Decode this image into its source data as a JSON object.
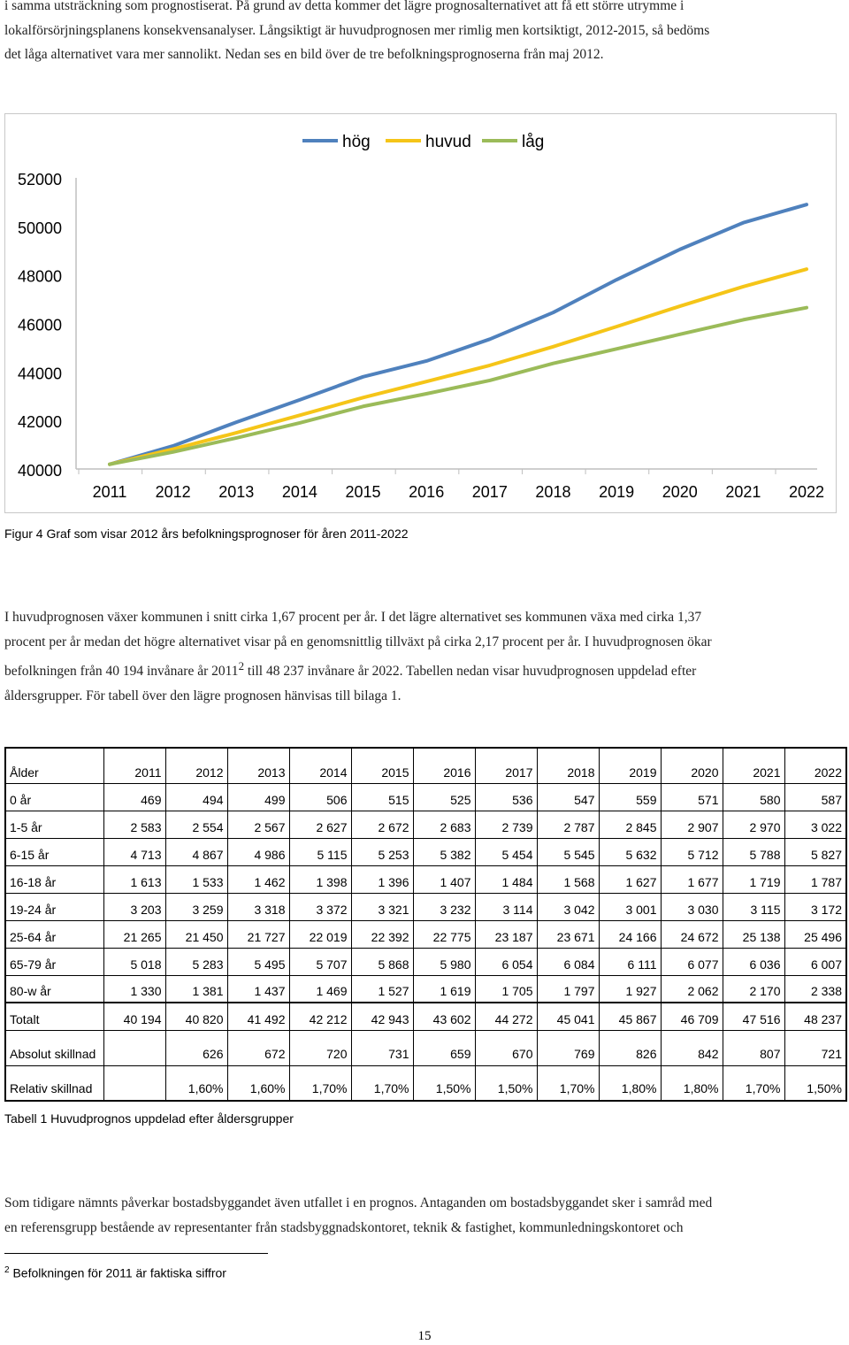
{
  "intro": {
    "lines": [
      "i samma utsträckning som prognostiserat. På grund av detta kommer det lägre prognosalternativet att få ett större utrymme i",
      "lokalförsörjningsplanens konsekvensanalyser. Långsiktigt är huvudprognosen mer rimlig men kortsiktigt, 2012-2015, så bedöms",
      "det låga alternativet vara mer sannolikt. Nedan ses en bild över de tre befolkningsprognoserna från maj 2012."
    ]
  },
  "chart_data": {
    "type": "line",
    "x": [
      2011,
      2012,
      2013,
      2014,
      2015,
      2016,
      2017,
      2018,
      2019,
      2020,
      2021,
      2022
    ],
    "tick_labels": [
      "2011",
      "2012",
      "2013",
      "2014",
      "2015",
      "2016",
      "2017",
      "2018",
      "2019",
      "2020",
      "2021",
      "2022"
    ],
    "ylim": [
      40000,
      52000
    ],
    "yticks": [
      40000,
      42000,
      44000,
      46000,
      48000,
      50000,
      52000
    ],
    "ytick_labels": [
      "40000",
      "42000",
      "44000",
      "46000",
      "48000",
      "50000",
      "52000"
    ],
    "legend_position": "top",
    "grid": false,
    "series": [
      {
        "name": "hög",
        "color": "#4f81bd",
        "values": [
          40194,
          40950,
          41930,
          42850,
          43800,
          44450,
          45350,
          46450,
          47800,
          49050,
          50150,
          50900
        ]
      },
      {
        "name": "huvud",
        "color": "#f5c518",
        "values": [
          40194,
          40820,
          41492,
          42212,
          42943,
          43602,
          44272,
          45041,
          45867,
          46709,
          47516,
          48237
        ]
      },
      {
        "name": "låg",
        "color": "#9bbb59",
        "values": [
          40194,
          40700,
          41280,
          41900,
          42580,
          43100,
          43650,
          44350,
          44950,
          45550,
          46150,
          46650
        ]
      }
    ]
  },
  "figure_caption": "Figur 4 Graf som visar 2012 års befolkningsprognoser för åren 2011-2022",
  "body1": {
    "lines": [
      "I huvudprognosen växer kommunen i snitt cirka 1,67 procent per år. I det lägre alternativet ses kommunen växa med cirka 1,37",
      "procent per år medan det högre alternativet visar på en genomsnittlig tillväxt på cirka 2,17 procent per år. I huvudprognosen ökar",
      "åldersgrupper. För tabell över den lägre prognosen hänvisas till bilaga 1."
    ],
    "line3_before": "befolkningen från 40 194 invånare år 2011",
    "line3_sup": "2",
    "line3_after": " till 48 237 invånare år 2022. Tabellen nedan visar huvudprognosen uppdelad efter"
  },
  "table": {
    "header": [
      "Ålder",
      "2011",
      "2012",
      "2013",
      "2014",
      "2015",
      "2016",
      "2017",
      "2018",
      "2019",
      "2020",
      "2021",
      "2022"
    ],
    "rows": [
      [
        "0 år",
        "469",
        "494",
        "499",
        "506",
        "515",
        "525",
        "536",
        "547",
        "559",
        "571",
        "580",
        "587"
      ],
      [
        "1-5 år",
        "2 583",
        "2 554",
        "2 567",
        "2 627",
        "2 672",
        "2 683",
        "2 739",
        "2 787",
        "2 845",
        "2 907",
        "2 970",
        "3 022"
      ],
      [
        "6-15 år",
        "4 713",
        "4 867",
        "4 986",
        "5 115",
        "5 253",
        "5 382",
        "5 454",
        "5 545",
        "5 632",
        "5 712",
        "5 788",
        "5 827"
      ],
      [
        "16-18 år",
        "1 613",
        "1 533",
        "1 462",
        "1 398",
        "1 396",
        "1 407",
        "1 484",
        "1 568",
        "1 627",
        "1 677",
        "1 719",
        "1 787"
      ],
      [
        "19-24 år",
        "3 203",
        "3 259",
        "3 318",
        "3 372",
        "3 321",
        "3 232",
        "3 114",
        "3 042",
        "3 001",
        "3 030",
        "3 115",
        "3 172"
      ],
      [
        "25-64 år",
        "21 265",
        "21 450",
        "21 727",
        "22 019",
        "22 392",
        "22 775",
        "23 187",
        "23 671",
        "24 166",
        "24 672",
        "25 138",
        "25 496"
      ],
      [
        "65-79 år",
        "5 018",
        "5 283",
        "5 495",
        "5 707",
        "5 868",
        "5 980",
        "6 054",
        "6 084",
        "6 111",
        "6 077",
        "6 036",
        "6 007"
      ],
      [
        "80-w år",
        "1 330",
        "1 381",
        "1 437",
        "1 469",
        "1 527",
        "1 619",
        "1 705",
        "1 797",
        "1 927",
        "2 062",
        "2 170",
        "2 338"
      ]
    ],
    "total": [
      "Totalt",
      "40 194",
      "40 820",
      "41 492",
      "42 212",
      "42 943",
      "43 602",
      "44 272",
      "45 041",
      "45 867",
      "46 709",
      "47 516",
      "48 237"
    ],
    "absolute": [
      "Absolut skillnad",
      "",
      "626",
      "672",
      "720",
      "731",
      "659",
      "670",
      "769",
      "826",
      "842",
      "807",
      "721"
    ],
    "relative": [
      "Relativ skillnad",
      "",
      "1,60%",
      "1,60%",
      "1,70%",
      "1,70%",
      "1,50%",
      "1,50%",
      "1,70%",
      "1,80%",
      "1,80%",
      "1,70%",
      "1,50%"
    ]
  },
  "table_caption": "Tabell 1 Huvudprognos uppdelad efter åldersgrupper",
  "body2": {
    "lines": [
      "Som tidigare nämnts påverkar bostadsbyggandet även utfallet i en prognos. Antaganden om bostadsbyggandet sker i samråd med",
      "en referensgrupp bestående av representanter från stadsbyggnadskontoret, teknik & fastighet, kommunledningskontoret och"
    ]
  },
  "footnote": {
    "mark": "2",
    "text": " Befolkningen för 2011 är faktiska siffror"
  },
  "page_number": "15"
}
